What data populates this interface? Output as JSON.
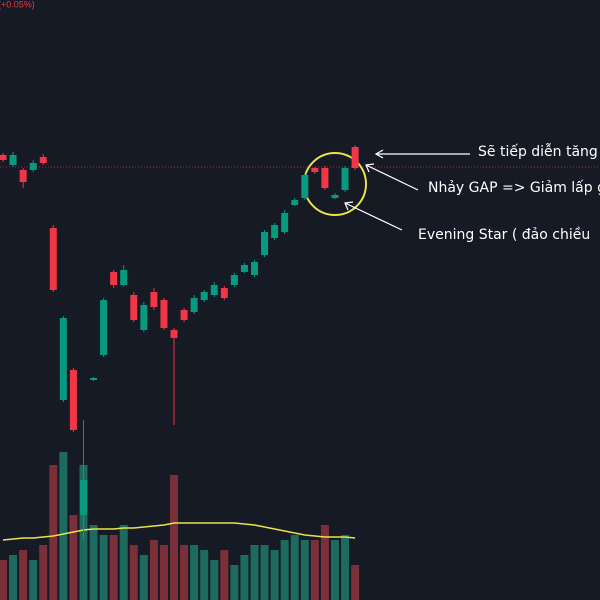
{
  "chart_data": {
    "type": "candlestick",
    "change_label": "(+0.05%)",
    "annotations": [
      "Sẽ tiếp diễn tăng",
      "Nhảy GAP => Giảm lấp g",
      "Evening Star ( đảo chiều"
    ],
    "up_color": "#089981",
    "down_color": "#f23645",
    "volume_up_color": "#1d6b5f",
    "volume_down_color": "#7b2f39",
    "ma_color": "#e9e34b",
    "ylim": [
      0,
      600
    ],
    "volume_ylim": [
      0,
      600
    ],
    "open": [
      445,
      435,
      430,
      430,
      443,
      372,
      200,
      230,
      85,
      220,
      245,
      328,
      315,
      305,
      270,
      308,
      300,
      270,
      290,
      288,
      300,
      305,
      312,
      315,
      328,
      325,
      345,
      362,
      368,
      395,
      402,
      432,
      432,
      402,
      410,
      453
    ],
    "high": [
      447,
      448,
      432,
      440,
      446,
      375,
      284,
      232,
      180,
      223,
      302,
      330,
      335,
      308,
      298,
      312,
      302,
      272,
      292,
      305,
      310,
      318,
      314,
      327,
      337,
      340,
      370,
      377,
      390,
      402,
      427,
      433,
      434,
      407,
      434,
      455
    ],
    "low": [
      438,
      433,
      412,
      428,
      435,
      308,
      198,
      168,
      60,
      219,
      243,
      312,
      313,
      278,
      268,
      290,
      270,
      175,
      278,
      286,
      298,
      303,
      300,
      313,
      327,
      323,
      343,
      360,
      366,
      394,
      400,
      426,
      410,
      401,
      408,
      430
    ],
    "close": [
      440,
      445,
      418,
      437,
      437,
      310,
      282,
      170,
      120,
      222,
      300,
      315,
      330,
      280,
      295,
      293,
      272,
      262,
      280,
      302,
      308,
      315,
      302,
      325,
      335,
      338,
      368,
      375,
      387,
      400,
      425,
      428,
      412,
      405,
      432,
      432
    ],
    "volume": [
      40,
      45,
      50,
      40,
      55,
      135,
      148,
      85,
      135,
      75,
      65,
      65,
      75,
      55,
      45,
      60,
      55,
      125,
      55,
      55,
      50,
      40,
      50,
      35,
      45,
      55,
      55,
      50,
      60,
      65,
      60,
      60,
      75,
      60,
      65,
      35
    ],
    "volume_ma": [
      60,
      61,
      62,
      62,
      63,
      64,
      66,
      68,
      70,
      71,
      71,
      71,
      72,
      72,
      73,
      74,
      75,
      77,
      77,
      77,
      77,
      77,
      77,
      77,
      76,
      75,
      73,
      71,
      69,
      67,
      65,
      64,
      63,
      63,
      63,
      62
    ]
  }
}
